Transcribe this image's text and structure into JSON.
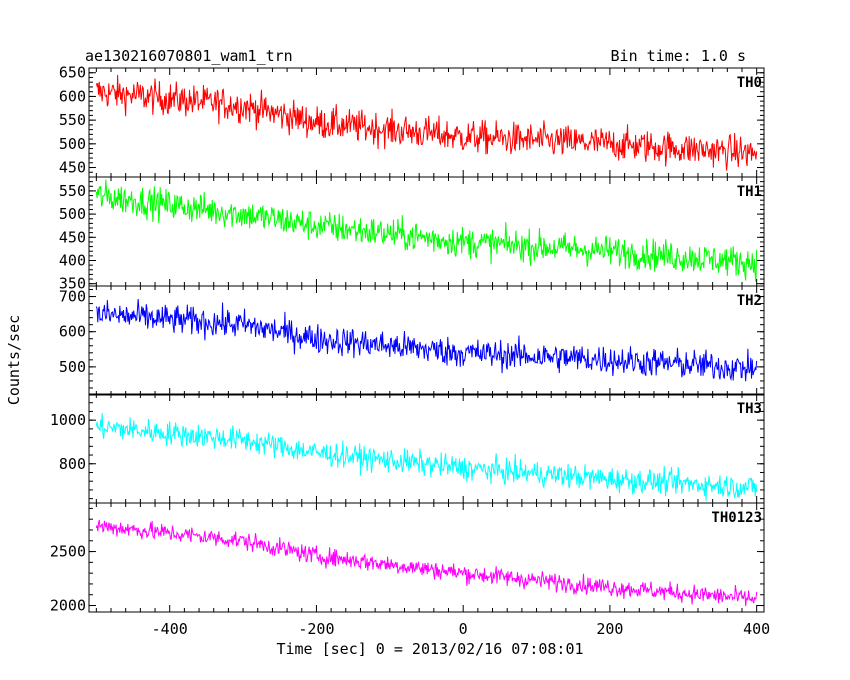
{
  "header": {
    "title": "ae130216070801_wam1_trn",
    "bin_time": "Bin time: 1.0 s"
  },
  "chart_data": {
    "type": "line",
    "xlabel": "Time [sec] 0 = 2013/02/16 07:08:01",
    "ylabel": "Counts/sec",
    "xlim": [
      -510,
      410
    ],
    "x_ticks": [
      -400,
      -200,
      0,
      200,
      400
    ],
    "bin_time_s": 1.0,
    "panels": [
      {
        "name": "TH0",
        "color": "#ff0000",
        "ylim": [
          430,
          660
        ],
        "y_ticks": [
          450,
          500,
          550,
          600,
          650
        ],
        "trend": [
          {
            "x": -500,
            "y": 610
          },
          {
            "x": -300,
            "y": 580
          },
          {
            "x": -200,
            "y": 545
          },
          {
            "x": 0,
            "y": 515
          },
          {
            "x": 200,
            "y": 500
          },
          {
            "x": 400,
            "y": 480
          }
        ],
        "noise": 25
      },
      {
        "name": "TH1",
        "color": "#00ff00",
        "ylim": [
          345,
          580
        ],
        "y_ticks": [
          350,
          400,
          450,
          500,
          550
        ],
        "trend": [
          {
            "x": -500,
            "y": 540
          },
          {
            "x": -300,
            "y": 500
          },
          {
            "x": -200,
            "y": 475
          },
          {
            "x": 0,
            "y": 440
          },
          {
            "x": 200,
            "y": 420
          },
          {
            "x": 400,
            "y": 395
          }
        ],
        "noise": 24
      },
      {
        "name": "TH2",
        "color": "#0000ff",
        "ylim": [
          420,
          730
        ],
        "y_ticks": [
          500,
          600,
          700
        ],
        "trend": [
          {
            "x": -500,
            "y": 650
          },
          {
            "x": -300,
            "y": 620
          },
          {
            "x": -200,
            "y": 580
          },
          {
            "x": 0,
            "y": 540
          },
          {
            "x": 200,
            "y": 520
          },
          {
            "x": 400,
            "y": 495
          }
        ],
        "noise": 30
      },
      {
        "name": "TH3",
        "color": "#00ffff",
        "ylim": [
          620,
          1120
        ],
        "y_ticks": [
          800,
          1000
        ],
        "trend": [
          {
            "x": -500,
            "y": 970
          },
          {
            "x": -300,
            "y": 910
          },
          {
            "x": -200,
            "y": 850
          },
          {
            "x": 0,
            "y": 780
          },
          {
            "x": 200,
            "y": 730
          },
          {
            "x": 400,
            "y": 690
          }
        ],
        "noise": 40
      },
      {
        "name": "TH0123",
        "color": "#ff00ff",
        "ylim": [
          1940,
          2950
        ],
        "y_ticks": [
          2000,
          2500
        ],
        "trend": [
          {
            "x": -500,
            "y": 2740
          },
          {
            "x": -300,
            "y": 2600
          },
          {
            "x": -200,
            "y": 2460
          },
          {
            "x": 0,
            "y": 2300
          },
          {
            "x": 200,
            "y": 2170
          },
          {
            "x": 400,
            "y": 2060
          }
        ],
        "noise": 60
      }
    ]
  }
}
